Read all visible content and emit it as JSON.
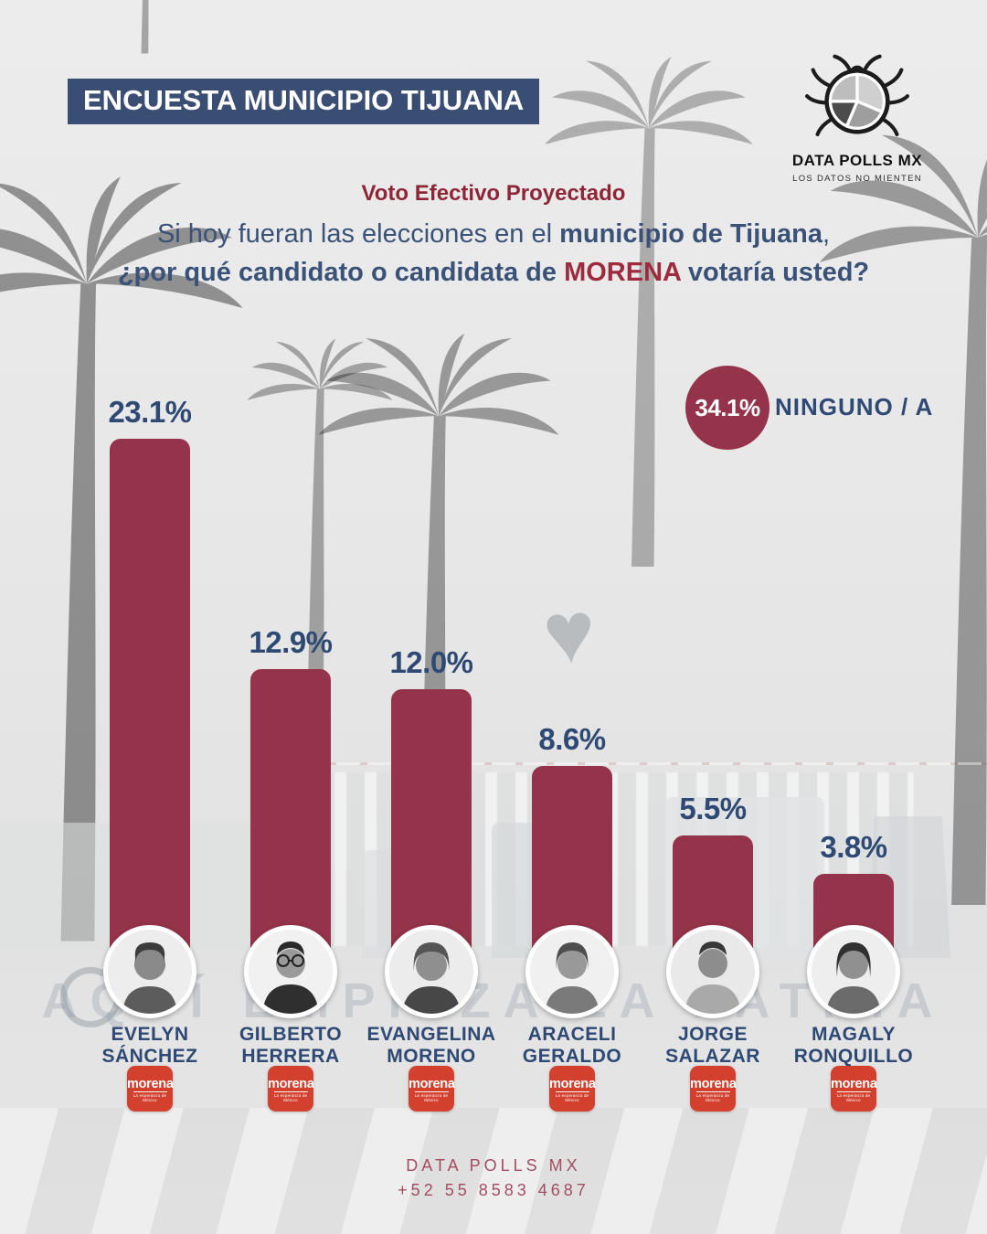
{
  "header": {
    "banner": "ENCUESTA MUNICIPIO TIJUANA",
    "logo": {
      "title": "DATA POLLS MX",
      "tagline": "LOS DATOS NO MIENTEN"
    }
  },
  "intro": {
    "kicker": "Voto Efectivo Proyectado",
    "q1_pre": "Si hoy fueran las elecciones en el ",
    "q1_bold": "municipio de Tijuana",
    "q1_post": ",",
    "q2_bold": "¿por qué candidato o candidata de ",
    "q2_accent": "MORENA",
    "q2_end": " votaría usted?"
  },
  "none_badge": {
    "value": "34.1%",
    "label": "NINGUNO / A"
  },
  "chart_data": {
    "type": "bar",
    "title": "Voto Efectivo Proyectado",
    "categories": [
      "Evelyn Sánchez",
      "Gilberto Herrera",
      "Evangelina Moreno",
      "Araceli Geraldo",
      "Jorge Salazar",
      "Magaly Ronquillo"
    ],
    "values": [
      23.1,
      12.9,
      12.0,
      8.6,
      5.5,
      3.8
    ],
    "value_labels": [
      "23.1%",
      "12.9%",
      "12.0%",
      "8.6%",
      "5.5%",
      "3.8%"
    ],
    "none_option": {
      "label": "NINGUNO / A",
      "value": 34.1
    },
    "bar_color": "#943349",
    "label_color": "#2e4a74",
    "ylim": [
      0,
      25
    ],
    "grid": "off",
    "legend": "none"
  },
  "candidates": [
    {
      "first": "EVELYN",
      "last": "SÁNCHEZ"
    },
    {
      "first": "GILBERTO",
      "last": "HERRERA"
    },
    {
      "first": "EVANGELINA",
      "last": "MORENO"
    },
    {
      "first": "ARACELI",
      "last": "GERALDO"
    },
    {
      "first": "JORGE",
      "last": "SALAZAR"
    },
    {
      "first": "MAGALY",
      "last": "RONQUILLO"
    }
  ],
  "party_logo": {
    "name": "morena",
    "tagline": "La esperanza de México",
    "color": "#d3402e"
  },
  "background": {
    "monument_text": "AQUÍ EMPIEZA LA PATRIA"
  },
  "footer": {
    "line1": "DATA POLLS MX",
    "line2": "+52 55 8583 4687"
  }
}
